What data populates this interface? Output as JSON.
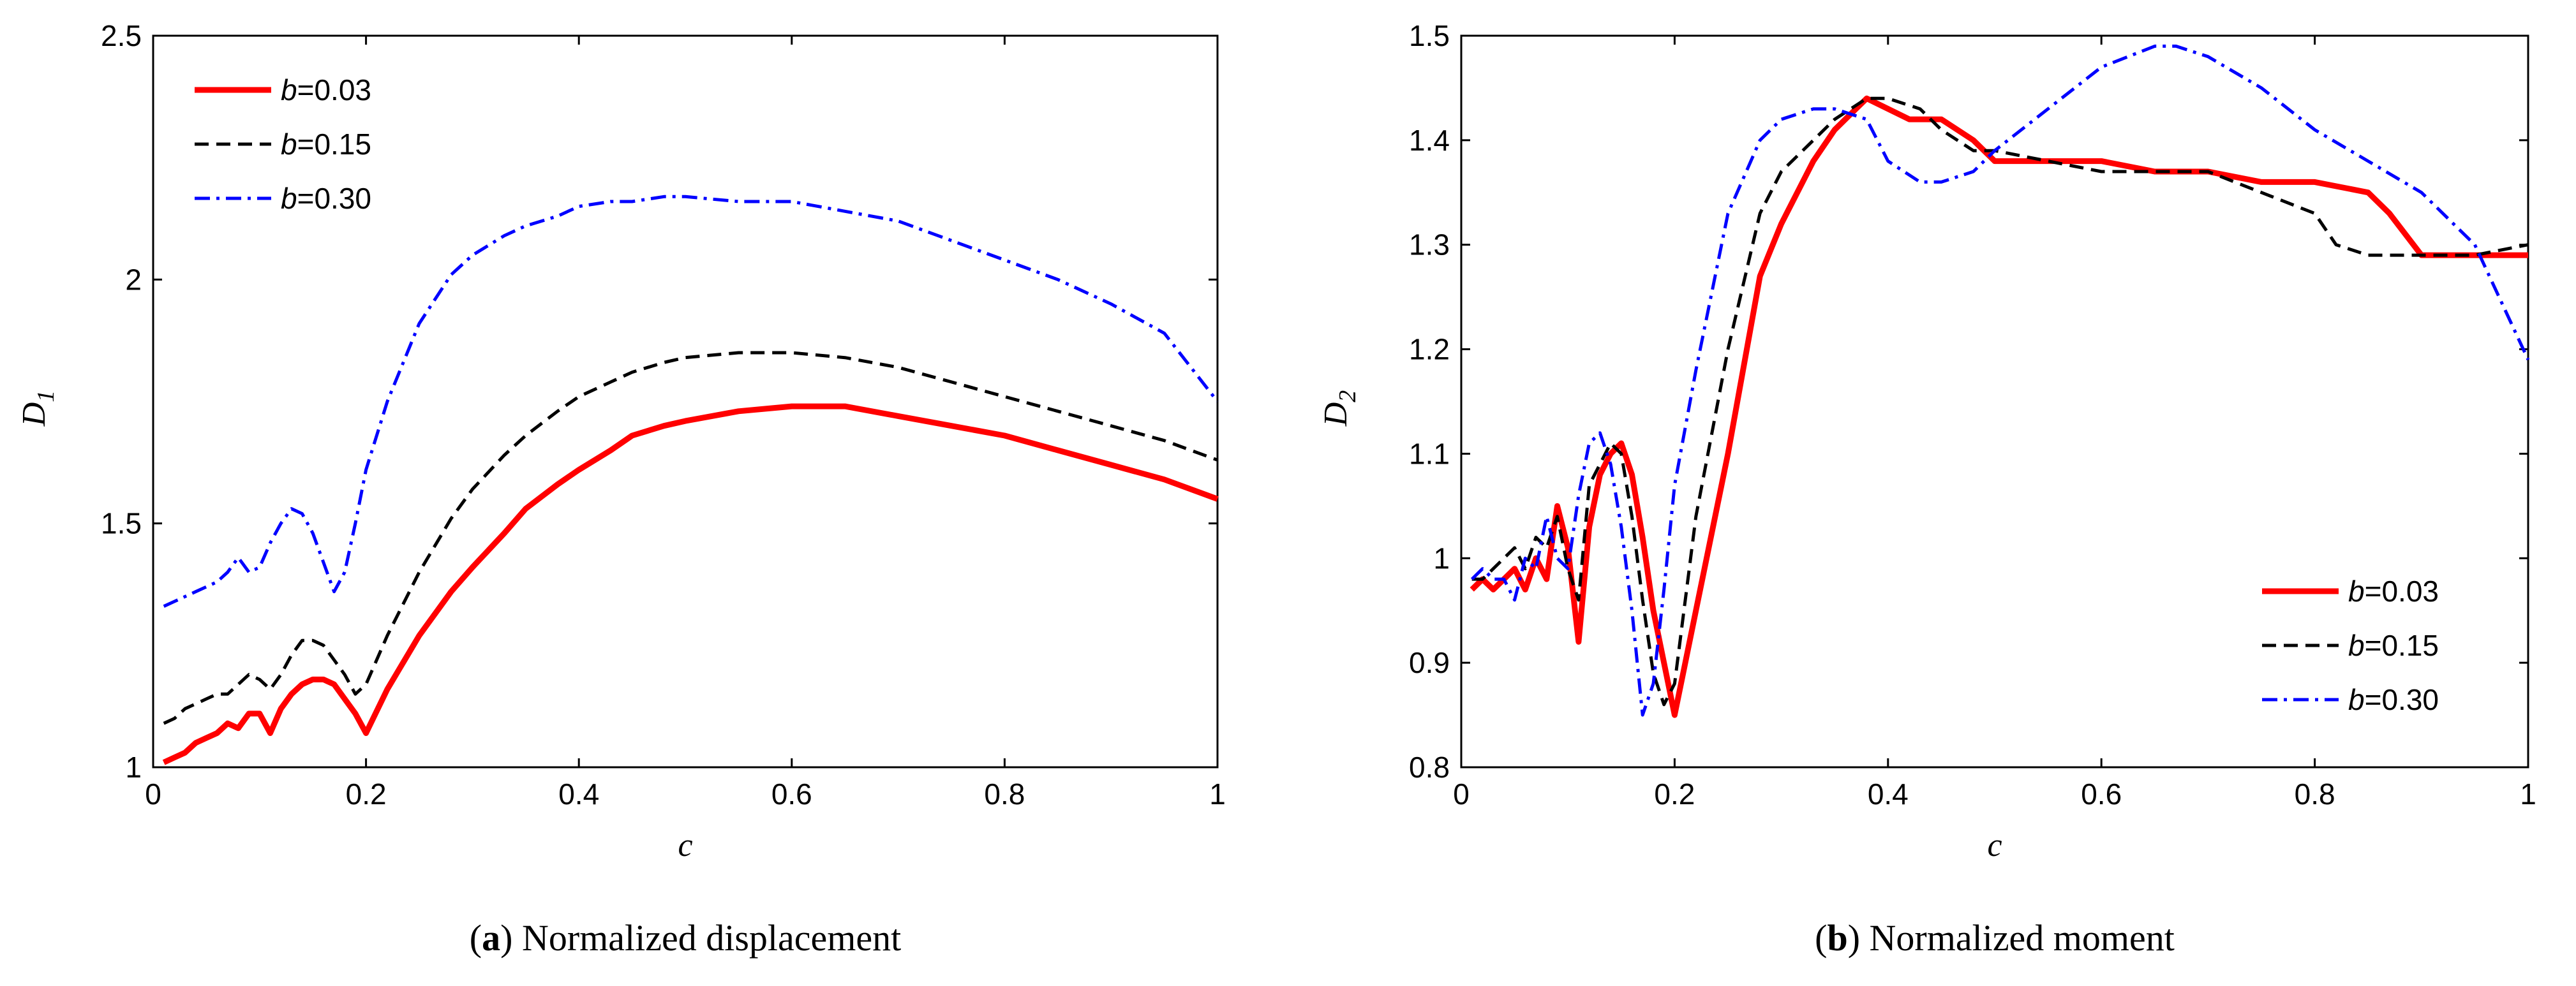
{
  "chart_data": [
    {
      "type": "line",
      "caption_letter": "a",
      "caption_text": "Normalized displacement",
      "xlabel": "c",
      "ylabel_base": "D",
      "ylabel_sub": "1",
      "xlim": [
        0,
        1
      ],
      "ylim": [
        1,
        2.5
      ],
      "xticks": [
        0,
        0.2,
        0.4,
        0.6,
        0.8,
        1
      ],
      "xtick_labels": [
        "0",
        "0.2",
        "0.4",
        "0.6",
        "0.8",
        "1"
      ],
      "yticks": [
        1,
        1.5,
        2,
        2.5
      ],
      "ytick_labels": [
        "1",
        "1.5",
        "2",
        "2.5"
      ],
      "legend_position": "top-left",
      "series": [
        {
          "name_var": "b",
          "name_value": "=0.03",
          "color": "#ff0000",
          "style": "solid",
          "x": [
            0.01,
            0.02,
            0.03,
            0.04,
            0.05,
            0.06,
            0.07,
            0.08,
            0.09,
            0.1,
            0.11,
            0.12,
            0.13,
            0.14,
            0.15,
            0.16,
            0.17,
            0.18,
            0.19,
            0.2,
            0.22,
            0.25,
            0.28,
            0.3,
            0.33,
            0.35,
            0.38,
            0.4,
            0.43,
            0.45,
            0.48,
            0.5,
            0.55,
            0.6,
            0.65,
            0.7,
            0.75,
            0.8,
            0.85,
            0.9,
            0.95,
            1.0
          ],
          "y": [
            1.01,
            1.02,
            1.03,
            1.05,
            1.06,
            1.07,
            1.09,
            1.08,
            1.11,
            1.11,
            1.07,
            1.12,
            1.15,
            1.17,
            1.18,
            1.18,
            1.17,
            1.14,
            1.11,
            1.07,
            1.16,
            1.27,
            1.36,
            1.41,
            1.48,
            1.53,
            1.58,
            1.61,
            1.65,
            1.68,
            1.7,
            1.71,
            1.73,
            1.74,
            1.74,
            1.72,
            1.7,
            1.68,
            1.65,
            1.62,
            1.59,
            1.55
          ]
        },
        {
          "name_var": "b",
          "name_value": "=0.15",
          "color": "#000000",
          "style": "dashed",
          "x": [
            0.01,
            0.02,
            0.03,
            0.04,
            0.05,
            0.06,
            0.07,
            0.08,
            0.09,
            0.1,
            0.11,
            0.12,
            0.13,
            0.14,
            0.15,
            0.16,
            0.17,
            0.18,
            0.19,
            0.2,
            0.22,
            0.25,
            0.28,
            0.3,
            0.33,
            0.35,
            0.38,
            0.4,
            0.43,
            0.45,
            0.48,
            0.5,
            0.55,
            0.6,
            0.65,
            0.7,
            0.75,
            0.8,
            0.85,
            0.9,
            0.95,
            1.0
          ],
          "y": [
            1.09,
            1.1,
            1.12,
            1.13,
            1.14,
            1.15,
            1.15,
            1.17,
            1.19,
            1.18,
            1.16,
            1.19,
            1.23,
            1.26,
            1.26,
            1.25,
            1.22,
            1.19,
            1.15,
            1.17,
            1.27,
            1.4,
            1.51,
            1.57,
            1.64,
            1.68,
            1.73,
            1.76,
            1.79,
            1.81,
            1.83,
            1.84,
            1.85,
            1.85,
            1.84,
            1.82,
            1.79,
            1.76,
            1.73,
            1.7,
            1.67,
            1.63
          ]
        },
        {
          "name_var": "b",
          "name_value": "=0.30",
          "color": "#0000ff",
          "style": "dashdot",
          "x": [
            0.01,
            0.02,
            0.03,
            0.04,
            0.05,
            0.06,
            0.07,
            0.08,
            0.09,
            0.1,
            0.11,
            0.12,
            0.13,
            0.14,
            0.15,
            0.16,
            0.17,
            0.18,
            0.19,
            0.2,
            0.22,
            0.25,
            0.28,
            0.3,
            0.33,
            0.35,
            0.38,
            0.4,
            0.43,
            0.45,
            0.48,
            0.5,
            0.55,
            0.6,
            0.65,
            0.7,
            0.75,
            0.8,
            0.85,
            0.9,
            0.95,
            1.0
          ],
          "y": [
            1.33,
            1.34,
            1.35,
            1.36,
            1.37,
            1.38,
            1.4,
            1.43,
            1.4,
            1.41,
            1.46,
            1.5,
            1.53,
            1.52,
            1.48,
            1.42,
            1.36,
            1.4,
            1.5,
            1.61,
            1.75,
            1.91,
            2.01,
            2.05,
            2.09,
            2.11,
            2.13,
            2.15,
            2.16,
            2.16,
            2.17,
            2.17,
            2.16,
            2.16,
            2.14,
            2.12,
            2.08,
            2.04,
            2.0,
            1.95,
            1.89,
            1.75
          ]
        }
      ]
    },
    {
      "type": "line",
      "caption_letter": "b",
      "caption_text": "Normalized moment",
      "xlabel": "c",
      "ylabel_base": "D",
      "ylabel_sub": "2",
      "xlim": [
        0,
        1
      ],
      "ylim": [
        0.8,
        1.5
      ],
      "xticks": [
        0,
        0.2,
        0.4,
        0.6,
        0.8,
        1
      ],
      "xtick_labels": [
        "0",
        "0.2",
        "0.4",
        "0.6",
        "0.8",
        "1"
      ],
      "yticks": [
        0.8,
        0.9,
        1.0,
        1.1,
        1.2,
        1.3,
        1.4,
        1.5
      ],
      "ytick_labels": [
        "0.8",
        "0.9",
        "1",
        "1.1",
        "1.2",
        "1.3",
        "1.4",
        "1.5"
      ],
      "legend_position": "bottom-right",
      "series": [
        {
          "name_var": "b",
          "name_value": "=0.03",
          "color": "#ff0000",
          "style": "solid",
          "x": [
            0.01,
            0.02,
            0.03,
            0.04,
            0.05,
            0.06,
            0.07,
            0.08,
            0.09,
            0.1,
            0.11,
            0.12,
            0.13,
            0.14,
            0.15,
            0.16,
            0.17,
            0.18,
            0.19,
            0.2,
            0.22,
            0.25,
            0.28,
            0.3,
            0.33,
            0.35,
            0.37,
            0.38,
            0.4,
            0.42,
            0.45,
            0.48,
            0.5,
            0.55,
            0.6,
            0.65,
            0.7,
            0.75,
            0.8,
            0.85,
            0.87,
            0.9,
            0.93,
            0.96,
            1.0
          ],
          "y": [
            0.97,
            0.98,
            0.97,
            0.98,
            0.99,
            0.97,
            1.0,
            0.98,
            1.05,
            1.01,
            0.92,
            1.03,
            1.08,
            1.1,
            1.11,
            1.08,
            1.02,
            0.95,
            0.9,
            0.85,
            0.95,
            1.1,
            1.27,
            1.32,
            1.38,
            1.41,
            1.43,
            1.44,
            1.43,
            1.42,
            1.42,
            1.4,
            1.38,
            1.38,
            1.38,
            1.37,
            1.37,
            1.36,
            1.36,
            1.35,
            1.33,
            1.29,
            1.29,
            1.29,
            1.29
          ]
        },
        {
          "name_var": "b",
          "name_value": "=0.15",
          "color": "#000000",
          "style": "dashed",
          "x": [
            0.01,
            0.02,
            0.03,
            0.04,
            0.05,
            0.06,
            0.07,
            0.08,
            0.09,
            0.1,
            0.11,
            0.12,
            0.13,
            0.14,
            0.15,
            0.16,
            0.17,
            0.18,
            0.19,
            0.2,
            0.22,
            0.25,
            0.28,
            0.3,
            0.33,
            0.35,
            0.38,
            0.4,
            0.43,
            0.45,
            0.48,
            0.5,
            0.55,
            0.6,
            0.65,
            0.7,
            0.75,
            0.8,
            0.82,
            0.85,
            0.9,
            0.95,
            1.0
          ],
          "y": [
            0.98,
            0.98,
            0.99,
            1.0,
            1.01,
            0.99,
            1.02,
            1.01,
            1.04,
            0.99,
            0.96,
            1.07,
            1.09,
            1.11,
            1.1,
            1.04,
            0.96,
            0.89,
            0.86,
            0.88,
            1.04,
            1.2,
            1.33,
            1.37,
            1.4,
            1.42,
            1.44,
            1.44,
            1.43,
            1.41,
            1.39,
            1.39,
            1.38,
            1.37,
            1.37,
            1.37,
            1.35,
            1.33,
            1.3,
            1.29,
            1.29,
            1.29,
            1.3
          ]
        },
        {
          "name_var": "b",
          "name_value": "=0.30",
          "color": "#0000ff",
          "style": "dashdot",
          "x": [
            0.01,
            0.02,
            0.03,
            0.04,
            0.05,
            0.06,
            0.07,
            0.08,
            0.09,
            0.1,
            0.11,
            0.12,
            0.13,
            0.14,
            0.15,
            0.16,
            0.17,
            0.18,
            0.19,
            0.2,
            0.22,
            0.25,
            0.28,
            0.3,
            0.33,
            0.35,
            0.38,
            0.4,
            0.43,
            0.45,
            0.48,
            0.5,
            0.55,
            0.6,
            0.65,
            0.67,
            0.7,
            0.75,
            0.8,
            0.85,
            0.9,
            0.95,
            1.0
          ],
          "y": [
            0.98,
            0.99,
            0.98,
            0.98,
            0.96,
            1.0,
            0.99,
            1.04,
            1.0,
            0.99,
            1.06,
            1.11,
            1.12,
            1.09,
            1.03,
            0.95,
            0.85,
            0.88,
            0.97,
            1.07,
            1.18,
            1.33,
            1.4,
            1.42,
            1.43,
            1.43,
            1.42,
            1.38,
            1.36,
            1.36,
            1.37,
            1.39,
            1.43,
            1.47,
            1.49,
            1.49,
            1.48,
            1.45,
            1.41,
            1.38,
            1.35,
            1.3,
            1.19
          ]
        }
      ]
    }
  ]
}
